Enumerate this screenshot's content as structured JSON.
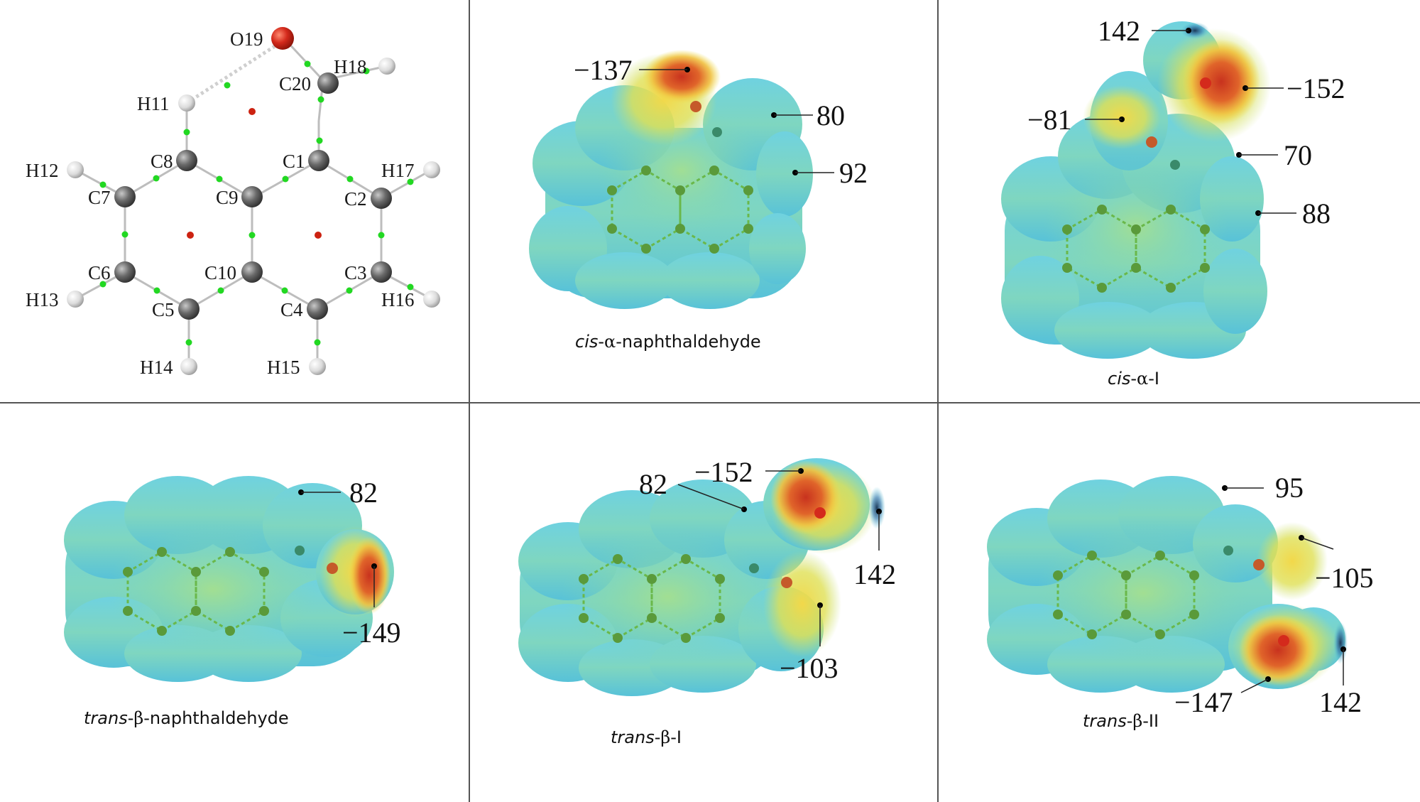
{
  "panels": [
    {
      "id": "structure",
      "atom_labels": {
        "O19": "O19",
        "H18": "H18",
        "C20": "C20",
        "H11": "H11",
        "C8": "C8",
        "C1": "C1",
        "H12": "H12",
        "H17": "H17",
        "C7": "C7",
        "C9": "C9",
        "C2": "C2",
        "C6": "C6",
        "C10": "C10",
        "C3": "C3",
        "H13": "H13",
        "H16": "H16",
        "C5": "C5",
        "C4": "C4",
        "H14": "H14",
        "H15": "H15"
      }
    },
    {
      "id": "cis-alpha-naphthaldehyde",
      "caption": {
        "italic": "cis",
        "dash1": "-",
        "greek": "α",
        "rest": "-naphthaldehyde"
      },
      "values": {
        "v1": "−137",
        "v2": "80",
        "v3": "92"
      }
    },
    {
      "id": "cis-alpha-I",
      "caption": {
        "italic": "cis",
        "dash1": "-",
        "greek": "α",
        "rest": "-I"
      },
      "values": {
        "v1": "142",
        "v2": "−152",
        "v3": "−81",
        "v4": "70",
        "v5": "88"
      }
    },
    {
      "id": "trans-beta-naphthaldehyde",
      "caption": {
        "italic": "trans",
        "dash1": "-",
        "greek": "β",
        "rest": "-naphthaldehyde"
      },
      "values": {
        "v1": "82",
        "v2": "−149"
      }
    },
    {
      "id": "trans-beta-I",
      "caption": {
        "italic": "trans",
        "dash1": "-",
        "greek": "β",
        "rest": "-I"
      },
      "values": {
        "v1": "82",
        "v2": "−152",
        "v3": "142",
        "v4": "−103"
      }
    },
    {
      "id": "trans-beta-II",
      "caption": {
        "italic": "trans",
        "dash1": "-",
        "greek": "β",
        "rest": "-II"
      },
      "values": {
        "v1": "95",
        "v2": "−105",
        "v3": "−147",
        "v4": "142"
      }
    }
  ],
  "colors": {
    "grid_lines": "#555555",
    "surface_blue": "#5cc8dc",
    "surface_green": "#9ad98a",
    "surface_yellow": "#ecdc4a",
    "surface_red": "#d8412a",
    "carbon": "#666666",
    "hydrogen": "#dddddd",
    "oxygen": "#d42a1c",
    "bcp_green": "#22d822",
    "rcp_red": "#cc2211"
  }
}
